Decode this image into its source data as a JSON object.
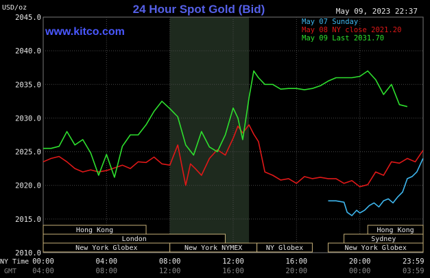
{
  "header": {
    "title": "24 Hour Spot Gold (Bid)",
    "timestamp": "May 09, 2023 22:37",
    "watermark": "www.kitco.com",
    "y_unit": "USD/oz"
  },
  "legend": [
    {
      "label": "May 07 Sunday",
      "color": "#3fb8f0"
    },
    {
      "label": "May 08 NY close 2021.20",
      "color": "#e01818"
    },
    {
      "label": "May 09 Last 2031.70",
      "color": "#2ee02e"
    }
  ],
  "axis": {
    "left_caption_top": "NY Time",
    "left_caption_bottom": "GMT",
    "ny_ticks": [
      "00:00",
      "04:00",
      "08:00",
      "12:00",
      "16:00",
      "20:00",
      "23:59"
    ],
    "gmt_ticks": [
      "04:00",
      "08:00",
      "12:00",
      "16:00",
      "20:00",
      "00:00",
      "03:59"
    ],
    "y_ticks": [
      "2045.0",
      "2040.0",
      "2035.0",
      "2030.0",
      "2025.0",
      "2020.0",
      "2015.0",
      "2010.0"
    ]
  },
  "sessions": [
    {
      "label": "Hong Kong",
      "row": 0,
      "start": 0.0,
      "end": 6.5
    },
    {
      "label": "Hong Kong",
      "row": 0,
      "start": 20.5,
      "end": 24.0
    },
    {
      "label": "London",
      "row": 1,
      "start": 0.0,
      "end": 11.5
    },
    {
      "label": "Sydney",
      "row": 1,
      "start": 19.0,
      "end": 24.0
    },
    {
      "label": "New York Globex",
      "row": 2,
      "start": 0.0,
      "end": 8.0
    },
    {
      "label": "New York NYMEX",
      "row": 2,
      "start": 8.0,
      "end": 13.5
    },
    {
      "label": "NY Globex",
      "row": 2,
      "start": 13.5,
      "end": 17.0
    },
    {
      "label": "New York Globex",
      "row": 2,
      "start": 18.0,
      "end": 24.0
    }
  ],
  "chart_data": {
    "type": "line",
    "title": "24 Hour Spot Gold (Bid)",
    "ylabel": "USD/oz",
    "xlabel": "NY Time",
    "x_unit": "hours (NY time)",
    "ylim": [
      2010,
      2045
    ],
    "xlim": [
      0,
      24
    ],
    "shaded_region": [
      8.0,
      13.0
    ],
    "grid": true,
    "legend_position": "top-right",
    "series": [
      {
        "name": "May 07 Sunday",
        "color": "#3fb8f0",
        "x": [
          18.0,
          18.5,
          19.0,
          19.2,
          19.5,
          19.8,
          20.0,
          20.3,
          20.6,
          20.9,
          21.2,
          21.5,
          21.8,
          22.1,
          22.4,
          22.7,
          23.0,
          23.3,
          23.6,
          23.99
        ],
        "y": [
          2017.7,
          2017.7,
          2017.5,
          2016.0,
          2015.5,
          2016.3,
          2015.9,
          2016.3,
          2017.0,
          2017.4,
          2016.8,
          2017.7,
          2018.0,
          2017.4,
          2018.3,
          2019.0,
          2021.0,
          2021.3,
          2022.0,
          2024.0
        ]
      },
      {
        "name": "May 08 NY close 2021.20",
        "color": "#e01818",
        "x": [
          0.0,
          0.5,
          1.0,
          1.5,
          2.0,
          2.5,
          3.0,
          3.5,
          4.0,
          4.5,
          5.0,
          5.5,
          6.0,
          6.5,
          7.0,
          7.5,
          8.0,
          8.5,
          9.0,
          9.3,
          9.6,
          10.0,
          10.5,
          11.0,
          11.5,
          12.0,
          12.3,
          12.6,
          13.0,
          13.3,
          13.6,
          14.0,
          14.5,
          15.0,
          15.5,
          16.0,
          16.5,
          17.0,
          17.5,
          18.0,
          18.5,
          19.0,
          19.5,
          20.0,
          20.5,
          21.0,
          21.5,
          22.0,
          22.5,
          23.0,
          23.5,
          23.99
        ],
        "y": [
          2023.5,
          2024.0,
          2024.3,
          2023.5,
          2022.5,
          2022.0,
          2022.3,
          2022.0,
          2022.2,
          2022.6,
          2023.0,
          2022.5,
          2023.5,
          2023.4,
          2024.2,
          2023.2,
          2023.0,
          2026.0,
          2020.0,
          2023.2,
          2022.5,
          2021.5,
          2024.0,
          2025.3,
          2024.5,
          2027.0,
          2028.8,
          2027.8,
          2029.0,
          2027.6,
          2026.5,
          2022.0,
          2021.5,
          2020.8,
          2021.0,
          2020.3,
          2021.3,
          2021.0,
          2021.2,
          2021.0,
          2021.0,
          2020.3,
          2020.7,
          2019.8,
          2020.1,
          2022.0,
          2021.5,
          2023.5,
          2023.3,
          2024.0,
          2023.5,
          2025.2
        ]
      },
      {
        "name": "May 09 Last 2031.70",
        "color": "#2ee02e",
        "x": [
          0.0,
          0.5,
          1.0,
          1.5,
          2.0,
          2.5,
          3.0,
          3.5,
          4.0,
          4.5,
          5.0,
          5.5,
          6.0,
          6.5,
          7.0,
          7.5,
          8.0,
          8.5,
          9.0,
          9.5,
          10.0,
          10.5,
          11.0,
          11.5,
          12.0,
          12.3,
          12.6,
          13.0,
          13.3,
          13.6,
          14.0,
          14.5,
          15.0,
          15.5,
          16.0,
          16.5,
          17.0,
          17.5,
          18.0,
          18.5,
          19.0,
          19.5,
          20.0,
          20.5,
          21.0,
          21.5,
          22.0,
          22.5,
          23.0
        ],
        "y": [
          2025.5,
          2025.5,
          2025.8,
          2028.0,
          2026.0,
          2026.8,
          2024.8,
          2021.5,
          2024.6,
          2021.2,
          2025.8,
          2027.5,
          2027.5,
          2029.0,
          2031.0,
          2032.5,
          2031.4,
          2030.2,
          2026.0,
          2024.5,
          2028.0,
          2025.7,
          2025.0,
          2027.5,
          2031.5,
          2030.0,
          2026.8,
          2033.0,
          2037.0,
          2036.0,
          2035.0,
          2035.0,
          2034.3,
          2034.4,
          2034.4,
          2034.2,
          2034.4,
          2034.8,
          2035.5,
          2036.0,
          2036.0,
          2036.0,
          2036.2,
          2037.0,
          2035.7,
          2033.5,
          2035.0,
          2032.0,
          2031.7
        ]
      }
    ]
  }
}
